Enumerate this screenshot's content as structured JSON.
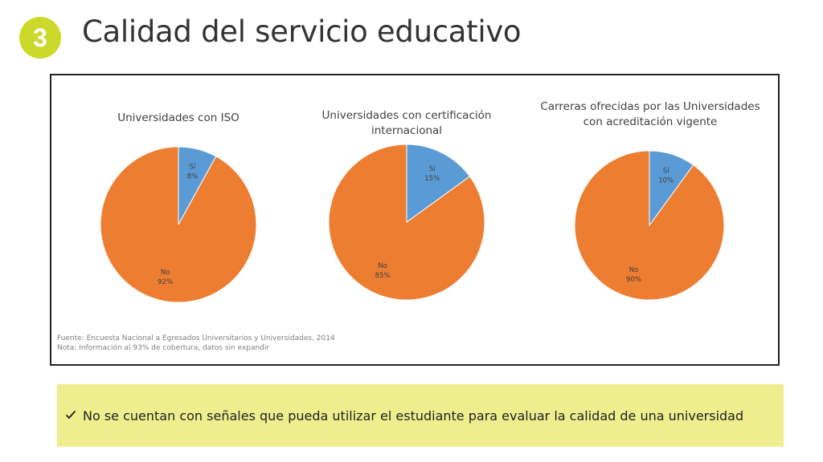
{
  "header": {
    "section_number": "3",
    "title": "Calidad del servicio educativo"
  },
  "colors": {
    "si": "#5b9bd5",
    "no": "#ed7d31",
    "badge": "#cbd92a",
    "note_bg": "#eeee8e"
  },
  "chart_data": [
    {
      "type": "pie",
      "title": "Universidades con ISO",
      "slices": [
        {
          "label": "Sí",
          "value": 8,
          "display": "8%"
        },
        {
          "label": "No",
          "value": 92,
          "display": "92%"
        }
      ]
    },
    {
      "type": "pie",
      "title": "Universidades con certificación internacional",
      "slices": [
        {
          "label": "Sí",
          "value": 15,
          "display": "15%"
        },
        {
          "label": "No",
          "value": 85,
          "display": "85%"
        }
      ]
    },
    {
      "type": "pie",
      "title_lines": [
        "Carreras ofrecidas por las Universidades",
        "con acreditación vigente"
      ],
      "slices": [
        {
          "label": "Sí",
          "value": 10,
          "display": "10%"
        },
        {
          "label": "No",
          "value": 90,
          "display": "90%"
        }
      ]
    }
  ],
  "source": {
    "line1": "Fuente: Encuesta Nacional a Egresados Universitarios y Universidades, 2014",
    "line2": "Nota: Información al 93% de cobertura, datos sin expandir"
  },
  "note": {
    "icon": "check-icon",
    "text": "No se cuentan con señales que pueda utilizar el estudiante para evaluar la calidad de una universidad"
  }
}
